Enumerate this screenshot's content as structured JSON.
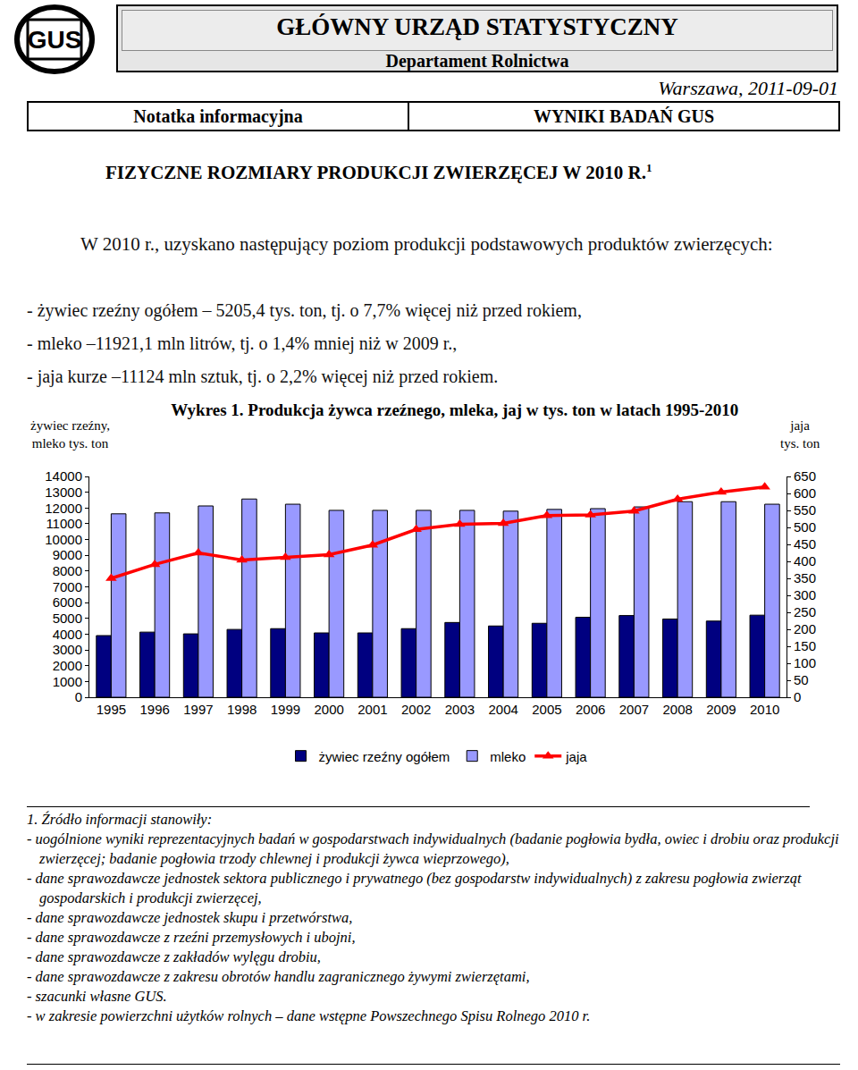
{
  "document": {
    "logo": "GUS",
    "header": {
      "title": "GŁÓWNY URZĄD STATYSTYCZNY",
      "department": "Departament Rolnictwa",
      "place_date": "Warszawa, 2011-09-01",
      "left": "Notatka informacyjna",
      "right": "WYNIKI BADAŃ GUS"
    },
    "title": "FIZYCZNE ROZMIARY PRODUKCJI ZWIERZĘCEJ W 2010 R.",
    "title_note": "1",
    "intro": "W 2010 r., uzyskano następujący poziom produkcji podstawowych produktów zwierzęcych:",
    "bullets": [
      "- żywiec rzeźny ogółem – 5205,4 tys. ton, tj. o 7,7% więcej niż przed rokiem,",
      "- mleko –11921,1 mln litrów, tj. o 1,4% mniej niż w 2009 r.,",
      "- jaja kurze –11124 mln sztuk, tj. o 2,2% więcej niż przed rokiem."
    ],
    "notes": {
      "heading": "1. Źródło informacji stanowiły:",
      "items": [
        "- uogólnione wyniki reprezentacyjnych badań w gospodarstwach indywidualnych (badanie pogłowia bydła, owiec i drobiu oraz produkcji zwierzęcej; badanie pogłowia trzody chlewnej i produkcji żywca wieprzowego),",
        "- dane sprawozdawcze jednostek sektora publicznego i prywatnego (bez gospodarstw indywidualnych) z zakresu pogłowia zwierząt gospodarskich i produkcji zwierzęcej,",
        "- dane sprawozdawcze jednostek skupu i przetwórstwa,",
        "- dane sprawozdawcze z rzeźni przemysłowych i ubojni,",
        "- dane sprawozdawcze z zakładów wylęgu drobiu,",
        "- dane sprawozdawcze z zakresu obrotów handlu zagranicznego żywymi zwierzętami,",
        "- szacunki własne GUS.",
        "- w zakresie powierzchni użytków rolnych – dane wstępne Powszechnego Spisu Rolnego 2010 r."
      ]
    }
  },
  "chart_data": {
    "type": "bar",
    "title": "Wykres 1. Produkcja żywca rzeźnego, mleka, jaj w tys. ton w latach 1995-2010",
    "ylabel": "żywiec rzeźny,\nmleko tys. ton",
    "y2label": "jaja\ntys. ton",
    "categories": [
      "1995",
      "1996",
      "1997",
      "1998",
      "1999",
      "2000",
      "2001",
      "2002",
      "2003",
      "2004",
      "2005",
      "2006",
      "2007",
      "2008",
      "2009",
      "2010"
    ],
    "series": [
      {
        "name": "żywiec rzeźny ogółem",
        "type": "bar",
        "color": "#000080",
        "values": [
          3910,
          4130,
          4020,
          4300,
          4350,
          4080,
          4080,
          4350,
          4740,
          4520,
          4690,
          5070,
          5180,
          4960,
          4830,
          5205.4
        ]
      },
      {
        "name": "mleko",
        "type": "bar",
        "color": "#9999ff",
        "values": [
          11630,
          11690,
          12130,
          12570,
          12240,
          11850,
          11850,
          11850,
          11850,
          11800,
          11910,
          11960,
          12070,
          12400,
          12400,
          12240
        ]
      },
      {
        "name": "jaja",
        "type": "line",
        "color": "#ff0000",
        "marker": "triangle-up",
        "axis": "y2",
        "values": [
          350,
          391,
          425,
          404,
          412,
          420,
          448,
          494,
          509,
          512,
          535,
          537,
          548,
          583,
          604,
          619
        ]
      }
    ],
    "ylim": [
      0,
      14000
    ],
    "yticks": [
      0,
      1000,
      2000,
      3000,
      4000,
      5000,
      6000,
      7000,
      8000,
      9000,
      10000,
      11000,
      12000,
      13000,
      14000
    ],
    "y2lim": [
      0,
      650
    ],
    "y2ticks": [
      0,
      50,
      100,
      150,
      200,
      250,
      300,
      350,
      400,
      450,
      500,
      550,
      600,
      650
    ],
    "grid": false,
    "legend": "bottom"
  }
}
